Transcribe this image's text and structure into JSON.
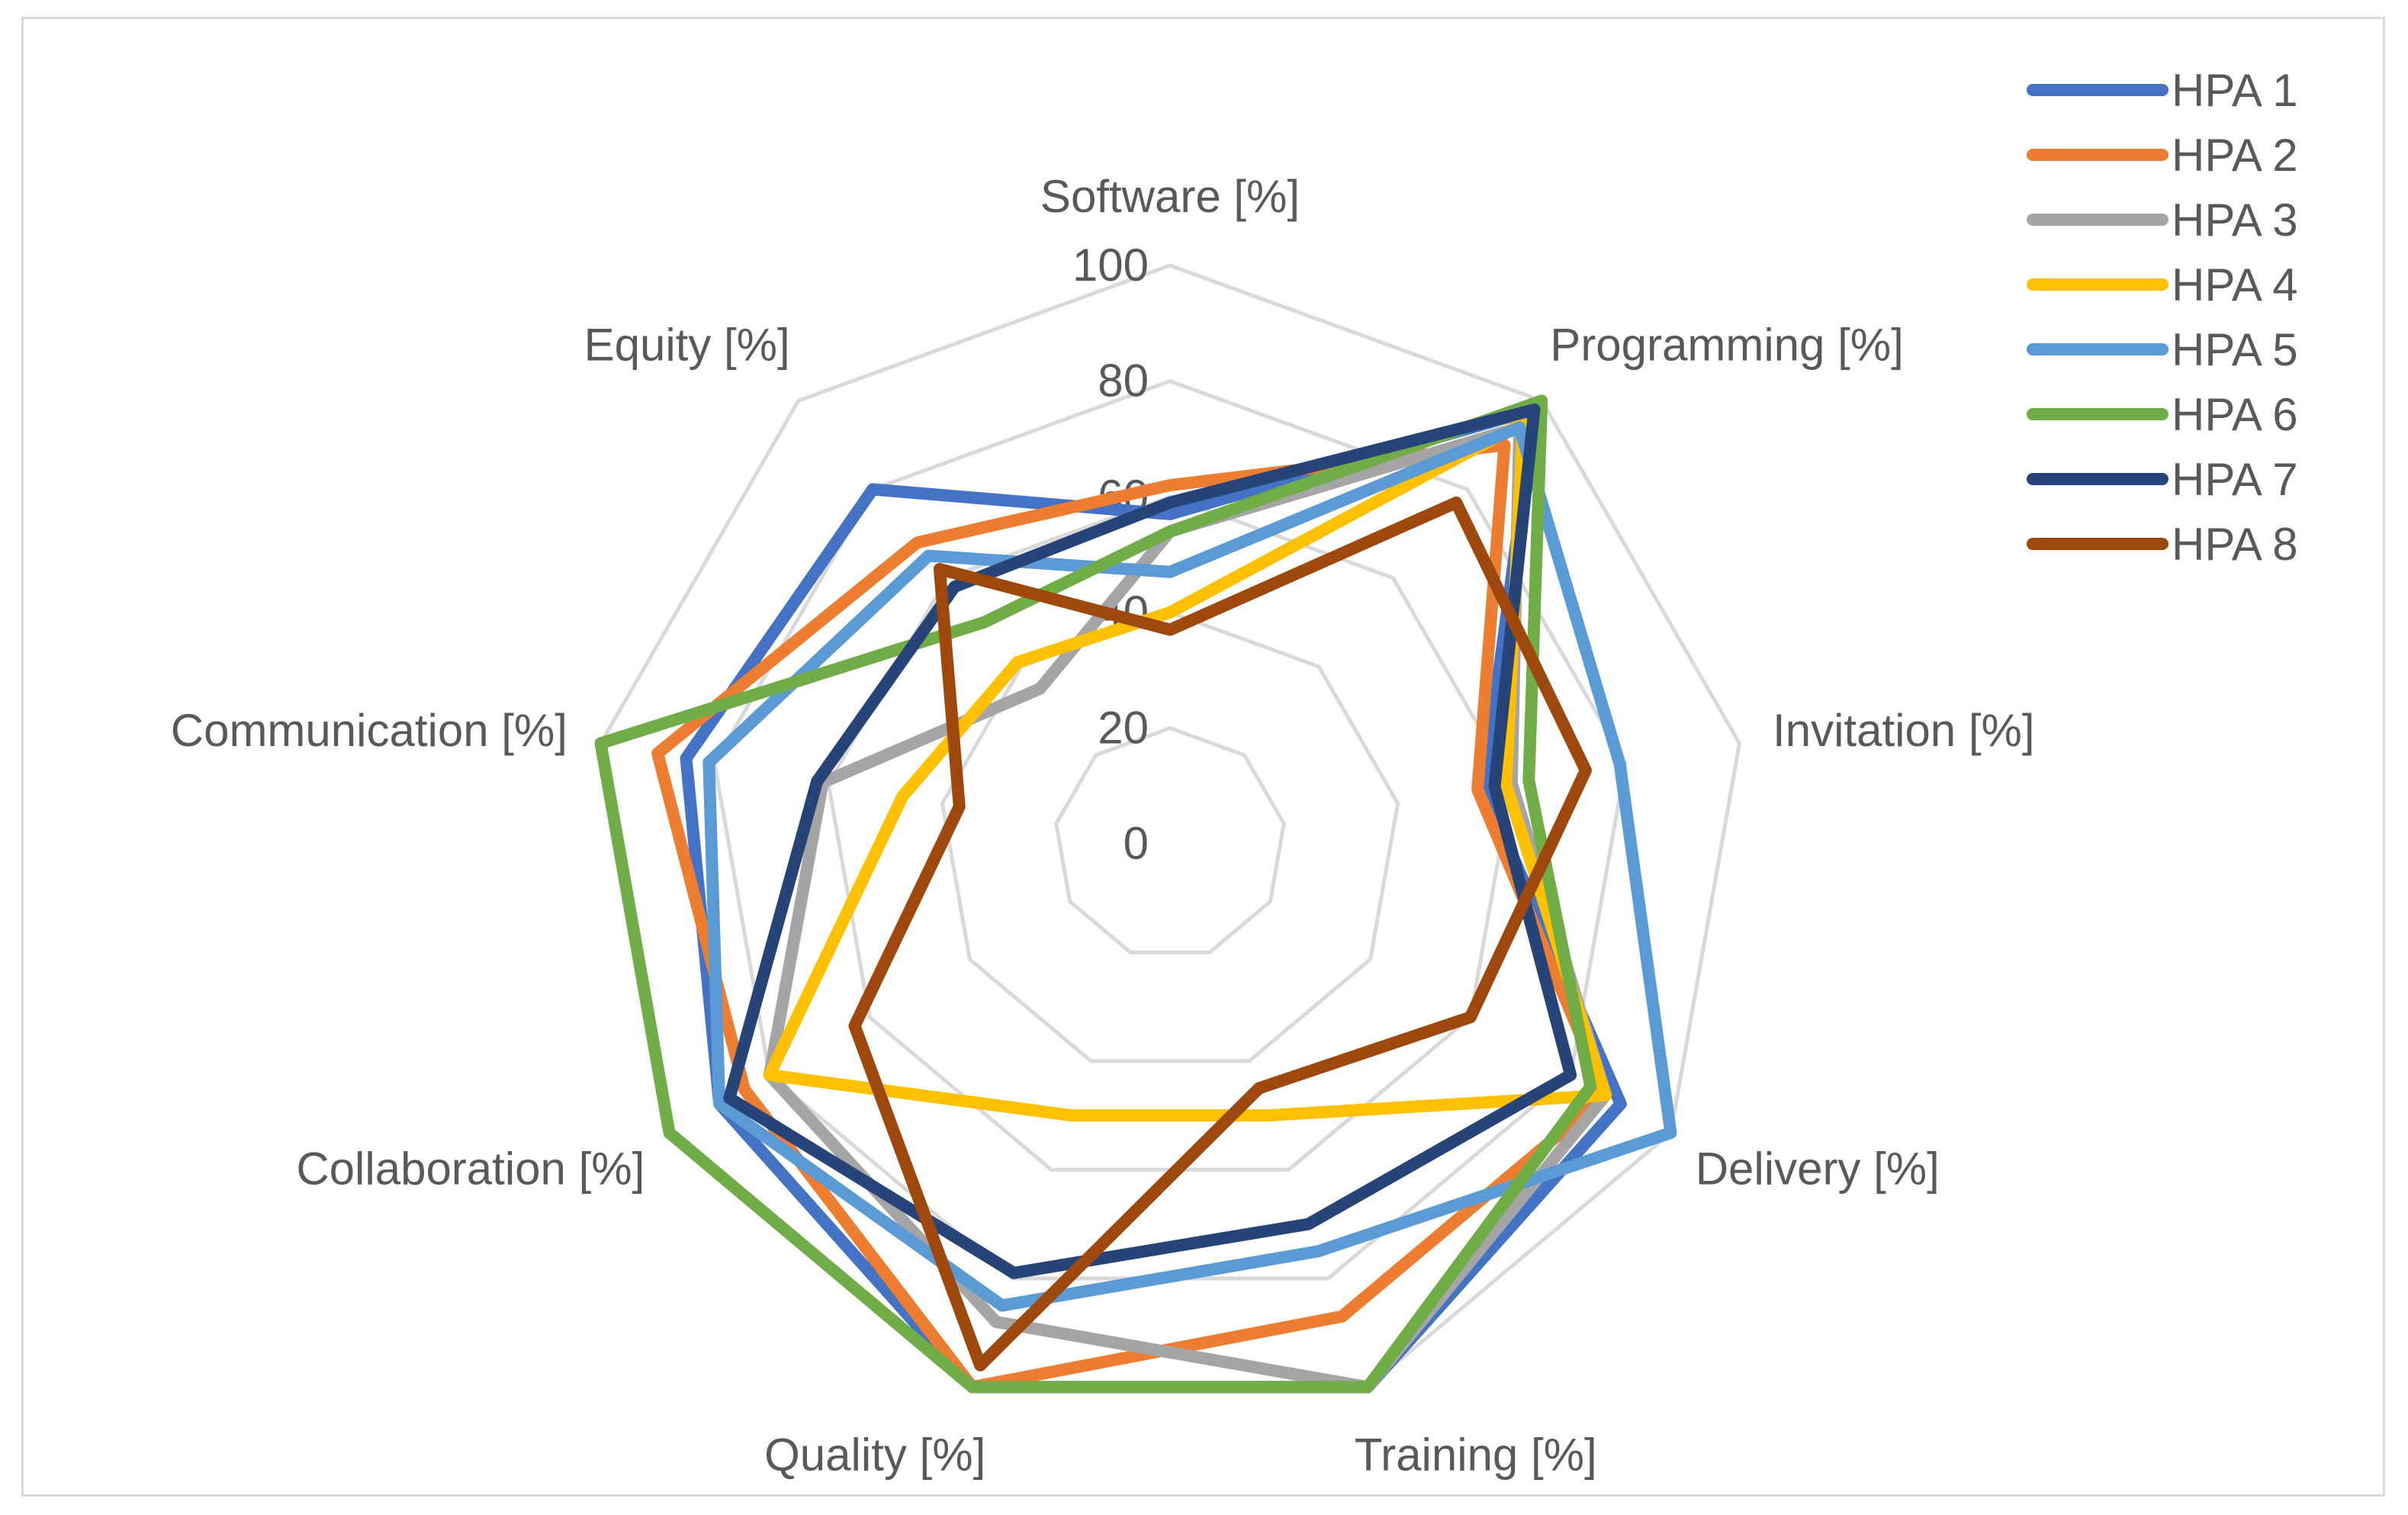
{
  "chart_data": {
    "type": "radar",
    "title": "",
    "axes": [
      "Software [%]",
      "Programming [%]",
      "Invitation [%]",
      "Delivery [%]",
      "Training [%]",
      "Quality [%]",
      "Collaboration [%]",
      "Communication [%]",
      "Equity [%]"
    ],
    "r_ticks": [
      "0",
      "20",
      "40",
      "60",
      "80",
      "100"
    ],
    "r_values": [
      0,
      20,
      40,
      60,
      80,
      100
    ],
    "rlim": [
      0,
      100
    ],
    "grid": true,
    "legend_position": "top-right",
    "series": [
      {
        "name": "HPA 1",
        "color": "#4472C4",
        "values": [
          57,
          98,
          55,
          90,
          100,
          100,
          90,
          85,
          80
        ]
      },
      {
        "name": "HPA 2",
        "color": "#ED7D31",
        "values": [
          62,
          90,
          54,
          87,
          87,
          100,
          85,
          90,
          68
        ]
      },
      {
        "name": "HPA 3",
        "color": "#A5A5A5",
        "values": [
          54,
          94,
          60,
          87,
          100,
          88,
          80,
          61,
          35
        ]
      },
      {
        "name": "HPA 4",
        "color": "#FFC000",
        "values": [
          40,
          95,
          59,
          87,
          50,
          50,
          80,
          47,
          41
        ]
      },
      {
        "name": "HPA 5",
        "color": "#5B9BD5",
        "values": [
          47,
          94,
          79,
          100,
          75,
          85,
          90,
          81,
          65
        ]
      },
      {
        "name": "HPA 6",
        "color": "#70AD47",
        "values": [
          54,
          100,
          63,
          84,
          100,
          100,
          100,
          100,
          50
        ]
      },
      {
        "name": "HPA 7",
        "color": "#264478",
        "values": [
          59,
          98,
          57,
          80,
          70,
          79,
          88,
          62,
          58
        ]
      },
      {
        "name": "HPA 8",
        "color": "#9E480E",
        "values": [
          37,
          77,
          73,
          60,
          45,
          96,
          63,
          37,
          62
        ]
      }
    ]
  }
}
